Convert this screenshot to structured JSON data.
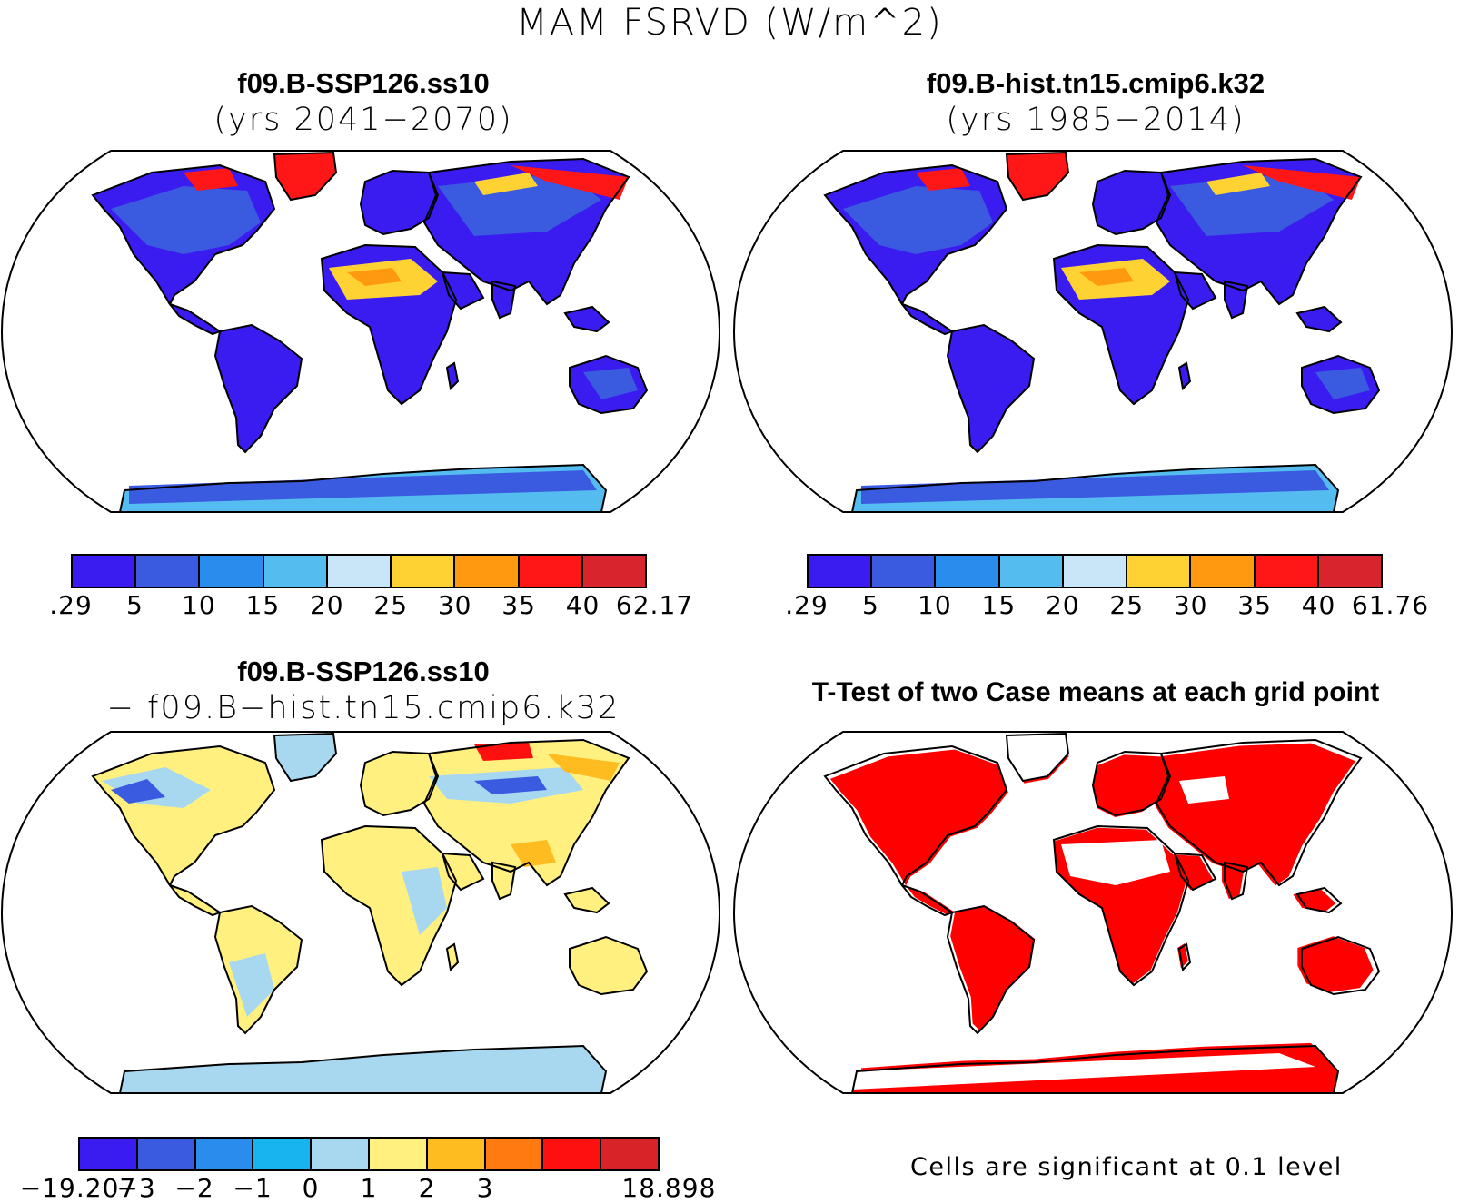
{
  "title": "MAM FSRVD (W/m^2)",
  "panels": {
    "p1": {
      "title": "f09.B-SSP126.ss10",
      "subtitle": "(yrs 2041−2070)"
    },
    "p2": {
      "title": "f09.B-hist.tn15.cmip6.k32",
      "subtitle": "(yrs 1985−2014)"
    },
    "p3": {
      "title": "f09.B-SSP126.ss10",
      "subtitle": "− f09.B−hist.tn15.cmip6.k32"
    },
    "p4": {
      "title": "T-Test of two Case means at each grid point"
    }
  },
  "colorbars": {
    "cb1": {
      "labels": [
        ".29",
        "5",
        "10",
        "15",
        "20",
        "25",
        "30",
        "35",
        "40",
        "62.17"
      ],
      "colors": [
        "#3a1cf0",
        "#3a5ae0",
        "#2a8cec",
        "#55bcf0",
        "#c8e6f8",
        "#ffd234",
        "#ff9a10",
        "#ff1616",
        "#d8242c"
      ]
    },
    "cb2": {
      "labels": [
        ".29",
        "5",
        "10",
        "15",
        "20",
        "25",
        "30",
        "35",
        "40",
        "61.76"
      ],
      "colors": [
        "#3a1cf0",
        "#3a5ae0",
        "#2a8cec",
        "#55bcf0",
        "#c8e6f8",
        "#ffd234",
        "#ff9a10",
        "#ff1616",
        "#d8242c"
      ]
    },
    "cb3": {
      "labels": [
        "−19.207",
        "−3",
        "−2",
        "−1",
        "0",
        "1",
        "2",
        "3",
        "",
        "18.898"
      ],
      "colors": [
        "#3a1cf0",
        "#3a5ae0",
        "#2a8cec",
        "#18b4f0",
        "#a8d8f0",
        "#fff080",
        "#ffbc20",
        "#ff7a10",
        "#ff1010",
        "#d82428"
      ]
    }
  },
  "note": "Cells are significant at 0.1 level",
  "map_fills": {
    "p1": {
      "base": "#3a1cf0",
      "accent": "#3a5ae0",
      "hot": "#ffd234",
      "warm": "#ff9a10",
      "red": "#ff1616",
      "ice": "#55bcf0"
    },
    "p2": {
      "base": "#3a1cf0",
      "accent": "#3a5ae0",
      "hot": "#ffd234",
      "warm": "#ff9a10",
      "red": "#ff1616",
      "ice": "#55bcf0"
    },
    "p3": {
      "base": "#fff080",
      "accent": "#a8d8f0",
      "hot": "#ffbc20",
      "warm": "#ff7a10",
      "red": "#ff1010",
      "ice": "#a8d8f0"
    },
    "p4": {
      "base": "#ffffff",
      "accent": "#ff0000",
      "hot": "#ff0000",
      "warm": "#ff0000",
      "red": "#ff0000",
      "ice": "#ff0000"
    }
  }
}
